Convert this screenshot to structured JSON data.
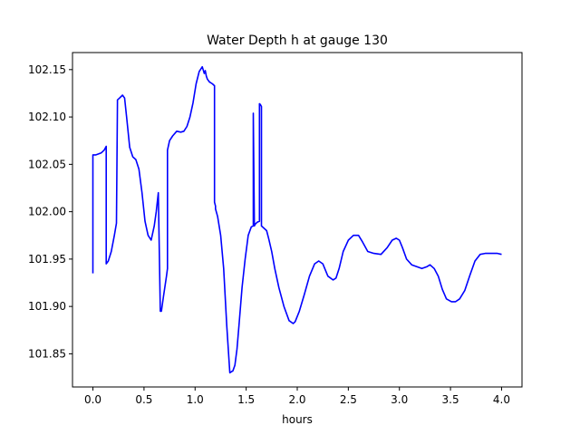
{
  "chart_data": {
    "type": "line",
    "title": "Water Depth h at gauge 130",
    "xlabel": "hours",
    "ylabel": "",
    "xlim": [
      -0.2,
      4.2
    ],
    "ylim": [
      101.815,
      102.168
    ],
    "xticks": [
      0.0,
      0.5,
      1.0,
      1.5,
      2.0,
      2.5,
      3.0,
      3.5,
      4.0
    ],
    "xtick_labels": [
      "0.0",
      "0.5",
      "1.0",
      "1.5",
      "2.0",
      "2.5",
      "3.0",
      "3.5",
      "4.0"
    ],
    "yticks": [
      101.85,
      101.9,
      101.95,
      102.0,
      102.05,
      102.1,
      102.15
    ],
    "ytick_labels": [
      "101.85",
      "101.90",
      "101.95",
      "102.00",
      "102.05",
      "102.10",
      "102.15"
    ],
    "grid": false,
    "series": [
      {
        "color": "#0000ff",
        "x": [
          0.0,
          0.0,
          0.03,
          0.08,
          0.11,
          0.13,
          0.13,
          0.15,
          0.18,
          0.21,
          0.23,
          0.24,
          0.24,
          0.26,
          0.29,
          0.31,
          0.33,
          0.36,
          0.39,
          0.42,
          0.45,
          0.48,
          0.51,
          0.54,
          0.57,
          0.6,
          0.62,
          0.64,
          0.66,
          0.67,
          0.67,
          0.69,
          0.72,
          0.73,
          0.73,
          0.75,
          0.78,
          0.82,
          0.86,
          0.89,
          0.92,
          0.95,
          0.98,
          1.01,
          1.04,
          1.07,
          1.09,
          1.1,
          1.11,
          1.12,
          1.14,
          1.17,
          1.19,
          1.19,
          1.2,
          1.2,
          1.22,
          1.25,
          1.28,
          1.31,
          1.34,
          1.37,
          1.39,
          1.41,
          1.43,
          1.46,
          1.49,
          1.52,
          1.55,
          1.57,
          1.57,
          1.58,
          1.59,
          1.59,
          1.61,
          1.63,
          1.63,
          1.64,
          1.65,
          1.65,
          1.67,
          1.7,
          1.72,
          1.75,
          1.78,
          1.82,
          1.87,
          1.92,
          1.96,
          1.98,
          2.02,
          2.07,
          2.12,
          2.17,
          2.21,
          2.25,
          2.3,
          2.35,
          2.38,
          2.41,
          2.45,
          2.5,
          2.55,
          2.6,
          2.64,
          2.69,
          2.75,
          2.82,
          2.88,
          2.93,
          2.97,
          3.0,
          3.03,
          3.07,
          3.12,
          3.17,
          3.22,
          3.27,
          3.3,
          3.34,
          3.38,
          3.42,
          3.46,
          3.51,
          3.55,
          3.59,
          3.64,
          3.69,
          3.74,
          3.79,
          3.84,
          3.9,
          3.96,
          4.0
        ],
        "y": [
          101.935,
          102.06,
          102.06,
          102.062,
          102.065,
          102.069,
          101.945,
          101.948,
          101.958,
          101.975,
          101.988,
          102.115,
          102.118,
          102.12,
          102.123,
          102.12,
          102.1,
          102.068,
          102.058,
          102.055,
          102.045,
          102.02,
          101.99,
          101.975,
          101.97,
          101.985,
          102.0,
          102.02,
          101.895,
          101.895,
          101.895,
          101.91,
          101.932,
          101.94,
          102.065,
          102.075,
          102.08,
          102.085,
          102.084,
          102.085,
          102.09,
          102.1,
          102.115,
          102.135,
          102.148,
          102.153,
          102.146,
          102.149,
          102.143,
          102.14,
          102.137,
          102.135,
          102.133,
          102.01,
          102.006,
          102.003,
          101.995,
          101.975,
          101.94,
          101.88,
          101.83,
          101.832,
          101.838,
          101.855,
          101.88,
          101.92,
          101.95,
          101.975,
          101.984,
          101.985,
          102.104,
          101.985,
          101.987,
          101.987,
          101.989,
          101.99,
          102.114,
          102.113,
          102.111,
          101.985,
          101.983,
          101.98,
          101.972,
          101.958,
          101.94,
          101.92,
          101.9,
          101.885,
          101.882,
          101.884,
          101.895,
          101.913,
          101.932,
          101.945,
          101.948,
          101.945,
          101.932,
          101.928,
          101.93,
          101.94,
          101.958,
          101.97,
          101.975,
          101.975,
          101.968,
          101.958,
          101.956,
          101.955,
          101.962,
          101.97,
          101.972,
          101.97,
          101.962,
          101.95,
          101.944,
          101.942,
          101.94,
          101.942,
          101.944,
          101.94,
          101.932,
          101.918,
          101.908,
          101.905,
          101.905,
          101.908,
          101.917,
          101.933,
          101.948,
          101.955,
          101.956,
          101.956,
          101.956,
          101.955
        ]
      }
    ]
  }
}
